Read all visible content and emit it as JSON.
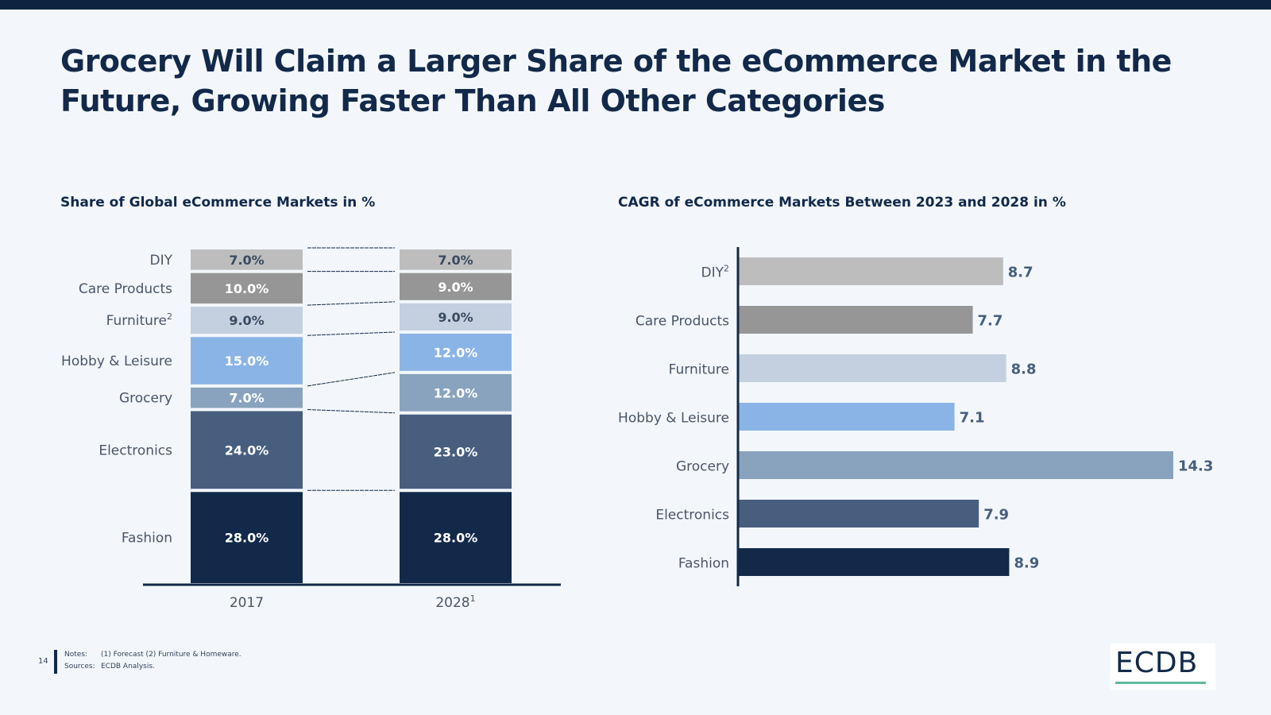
{
  "headline": "Grocery Will Claim a Larger Share of the eCommerce Market in the Future, Growing Faster Than All Other Categories",
  "footer": {
    "page_number": "14",
    "notes_label": "Notes:",
    "notes_text": "(1) Forecast (2) Furniture & Homeware.",
    "sources_label": "Sources:",
    "sources_text": "ECDB Analysis."
  },
  "logo": {
    "text": "ECDB"
  },
  "chart_data": [
    {
      "type": "bar",
      "stacked": true,
      "title": "Share of Global eCommerce Markets in %",
      "categories": [
        "2017",
        "2028"
      ],
      "category_superscripts": [
        "",
        "1"
      ],
      "series": [
        {
          "name": "Fashion",
          "superscript": "",
          "color": "#12294a",
          "label_color": "#ffffff",
          "values": [
            28.0,
            28.0
          ],
          "labels": [
            "28.0%",
            "28.0%"
          ]
        },
        {
          "name": "Electronics",
          "superscript": "",
          "color": "#475e7e",
          "label_color": "#ffffff",
          "values": [
            24.0,
            23.0
          ],
          "labels": [
            "24.0%",
            "23.0%"
          ]
        },
        {
          "name": "Grocery",
          "superscript": "",
          "color": "#89a3be",
          "label_color": "#ffffff",
          "values": [
            7.0,
            12.0
          ],
          "labels": [
            "7.0%",
            "12.0%"
          ]
        },
        {
          "name": "Hobby & Leisure",
          "superscript": "",
          "color": "#8bb4e6",
          "label_color": "#ffffff",
          "values": [
            15.0,
            12.0
          ],
          "labels": [
            "15.0%",
            "12.0%"
          ]
        },
        {
          "name": "Furniture",
          "superscript": "2",
          "color": "#c4cfe0",
          "label_color": "#3a4a60",
          "values": [
            9.0,
            9.0
          ],
          "labels": [
            "9.0%",
            "9.0%"
          ]
        },
        {
          "name": "Care Products",
          "superscript": "",
          "color": "#969696",
          "label_color": "#ffffff",
          "values": [
            10.0,
            9.0
          ],
          "labels": [
            "10.0%",
            "9.0%"
          ]
        },
        {
          "name": "DIY",
          "superscript": "",
          "color": "#bdbdbd",
          "label_color": "#3a4a60",
          "values": [
            7.0,
            7.0
          ],
          "labels": [
            "7.0%",
            "7.0%"
          ]
        }
      ],
      "ylim": [
        0,
        100
      ]
    },
    {
      "type": "bar",
      "orientation": "horizontal",
      "title": "CAGR of eCommerce Markets Between 2023 and 2028 in %",
      "categories": [
        "DIY",
        "Care Products",
        "Furniture",
        "Hobby & Leisure",
        "Grocery",
        "Electronics",
        "Fashion"
      ],
      "category_superscripts": [
        "2",
        "",
        "",
        "",
        "",
        "",
        ""
      ],
      "values": [
        8.7,
        7.7,
        8.8,
        7.1,
        14.3,
        7.9,
        8.9
      ],
      "labels": [
        "8.7",
        "7.7",
        "8.8",
        "7.1",
        "14.3",
        "7.9",
        "8.9"
      ],
      "colors": [
        "#bdbdbd",
        "#969696",
        "#c4cfe0",
        "#8bb4e6",
        "#89a3be",
        "#475e7e",
        "#12294a"
      ],
      "xlim": [
        0,
        15
      ]
    }
  ]
}
